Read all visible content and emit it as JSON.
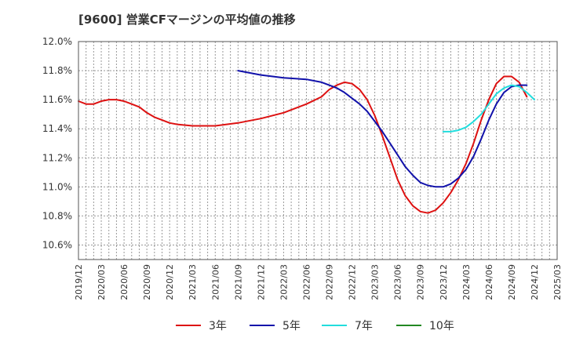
{
  "chart_data": {
    "type": "line",
    "title": "[9600]  営業CFマージンの平均値の推移",
    "ylim": [
      10.5,
      12.0
    ],
    "y_ticks": [
      "10.6%",
      "10.8%",
      "11.0%",
      "11.2%",
      "11.4%",
      "11.6%",
      "11.8%",
      "12.0%"
    ],
    "y_tick_values": [
      10.6,
      10.8,
      11.0,
      11.2,
      11.4,
      11.6,
      11.8,
      12.0
    ],
    "x_ticks": [
      "2019/12",
      "2020/03",
      "2020/06",
      "2020/09",
      "2020/12",
      "2021/03",
      "2021/06",
      "2021/09",
      "2021/12",
      "2022/03",
      "2022/06",
      "2022/09",
      "2022/12",
      "2023/03",
      "2023/06",
      "2023/09",
      "2023/12",
      "2024/03",
      "2024/06",
      "2024/09",
      "2024/12",
      "2025/03"
    ],
    "grid": true,
    "legend_position": "bottom",
    "series": [
      {
        "name": "3年",
        "color": "#dd1111",
        "points": [
          [
            "2019/12",
            11.59
          ],
          [
            "2020/01",
            11.57
          ],
          [
            "2020/02",
            11.57
          ],
          [
            "2020/03",
            11.59
          ],
          [
            "2020/04",
            11.6
          ],
          [
            "2020/05",
            11.6
          ],
          [
            "2020/06",
            11.59
          ],
          [
            "2020/07",
            11.57
          ],
          [
            "2020/08",
            11.55
          ],
          [
            "2020/09",
            11.51
          ],
          [
            "2020/10",
            11.48
          ],
          [
            "2020/11",
            11.46
          ],
          [
            "2020/12",
            11.44
          ],
          [
            "2021/01",
            11.43
          ],
          [
            "2021/03",
            11.42
          ],
          [
            "2021/06",
            11.42
          ],
          [
            "2021/09",
            11.44
          ],
          [
            "2021/12",
            11.47
          ],
          [
            "2022/03",
            11.51
          ],
          [
            "2022/06",
            11.57
          ],
          [
            "2022/08",
            11.62
          ],
          [
            "2022/09",
            11.67
          ],
          [
            "2022/10",
            11.7
          ],
          [
            "2022/11",
            11.72
          ],
          [
            "2022/12",
            11.71
          ],
          [
            "2023/01",
            11.67
          ],
          [
            "2023/02",
            11.6
          ],
          [
            "2023/03",
            11.49
          ],
          [
            "2023/04",
            11.35
          ],
          [
            "2023/05",
            11.2
          ],
          [
            "2023/06",
            11.05
          ],
          [
            "2023/07",
            10.94
          ],
          [
            "2023/08",
            10.87
          ],
          [
            "2023/09",
            10.83
          ],
          [
            "2023/10",
            10.82
          ],
          [
            "2023/11",
            10.84
          ],
          [
            "2023/12",
            10.89
          ],
          [
            "2024/01",
            10.96
          ],
          [
            "2024/02",
            11.05
          ],
          [
            "2024/03",
            11.16
          ],
          [
            "2024/04",
            11.3
          ],
          [
            "2024/05",
            11.46
          ],
          [
            "2024/06",
            11.6
          ],
          [
            "2024/07",
            11.71
          ],
          [
            "2024/08",
            11.76
          ],
          [
            "2024/09",
            11.76
          ],
          [
            "2024/10",
            11.72
          ],
          [
            "2024/11",
            11.62
          ]
        ]
      },
      {
        "name": "5年",
        "color": "#1111aa",
        "points": [
          [
            "2021/09",
            11.8
          ],
          [
            "2021/12",
            11.77
          ],
          [
            "2022/03",
            11.75
          ],
          [
            "2022/06",
            11.74
          ],
          [
            "2022/08",
            11.72
          ],
          [
            "2022/09",
            11.7
          ],
          [
            "2022/10",
            11.68
          ],
          [
            "2022/11",
            11.65
          ],
          [
            "2022/12",
            11.61
          ],
          [
            "2023/01",
            11.57
          ],
          [
            "2023/02",
            11.52
          ],
          [
            "2023/03",
            11.45
          ],
          [
            "2023/04",
            11.38
          ],
          [
            "2023/05",
            11.3
          ],
          [
            "2023/06",
            11.22
          ],
          [
            "2023/07",
            11.14
          ],
          [
            "2023/08",
            11.08
          ],
          [
            "2023/09",
            11.03
          ],
          [
            "2023/10",
            11.01
          ],
          [
            "2023/11",
            11.0
          ],
          [
            "2023/12",
            11.0
          ],
          [
            "2024/01",
            11.02
          ],
          [
            "2024/02",
            11.06
          ],
          [
            "2024/03",
            11.12
          ],
          [
            "2024/04",
            11.21
          ],
          [
            "2024/05",
            11.33
          ],
          [
            "2024/06",
            11.46
          ],
          [
            "2024/07",
            11.57
          ],
          [
            "2024/08",
            11.65
          ],
          [
            "2024/09",
            11.69
          ],
          [
            "2024/10",
            11.7
          ],
          [
            "2024/11",
            11.7
          ]
        ]
      },
      {
        "name": "7年",
        "color": "#22dddd",
        "points": [
          [
            "2023/12",
            11.38
          ],
          [
            "2024/01",
            11.38
          ],
          [
            "2024/02",
            11.39
          ],
          [
            "2024/03",
            11.41
          ],
          [
            "2024/04",
            11.45
          ],
          [
            "2024/05",
            11.5
          ],
          [
            "2024/06",
            11.57
          ],
          [
            "2024/07",
            11.64
          ],
          [
            "2024/08",
            11.68
          ],
          [
            "2024/09",
            11.7
          ],
          [
            "2024/10",
            11.69
          ],
          [
            "2024/11",
            11.65
          ],
          [
            "2024/12",
            11.6
          ]
        ]
      },
      {
        "name": "10年",
        "color": "#228822",
        "points": []
      }
    ]
  }
}
